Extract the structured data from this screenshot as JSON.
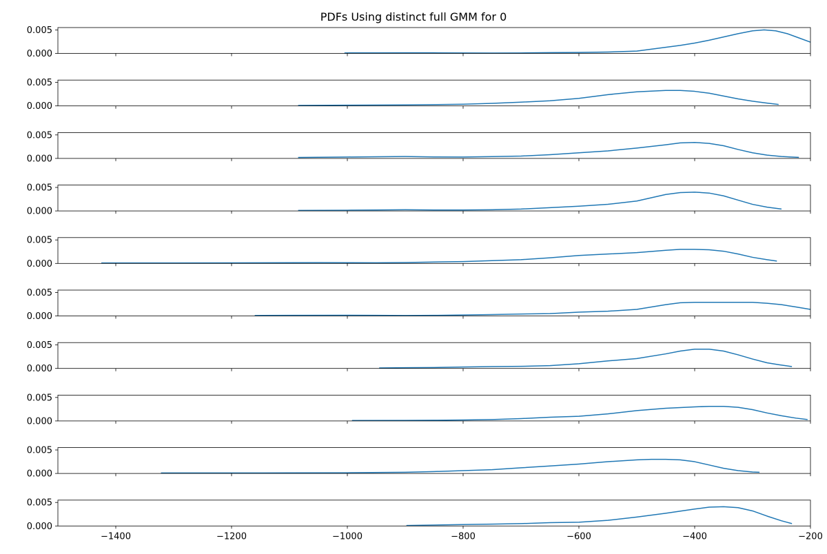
{
  "chart_data": {
    "type": "line",
    "title": "PDFs Using distinct full GMM for 0",
    "xlabel": "",
    "ylabel": "",
    "xlim": [
      -1500,
      -200
    ],
    "ylim": [
      0,
      0.0055
    ],
    "x_ticks": [
      -1400,
      -1200,
      -1000,
      -800,
      -600,
      -400,
      -200
    ],
    "x_tick_labels": [
      "−1400",
      "−1200",
      "−1000",
      "−800",
      "−600",
      "−400",
      "−200"
    ],
    "y_ticks": [
      0.0,
      0.005
    ],
    "y_tick_labels": [
      "0.000",
      "0.005"
    ],
    "line_color": "#1f77b4",
    "grid": false,
    "series": [
      {
        "x": [
          -1005,
          -950,
          -900,
          -850,
          -800,
          -750,
          -700,
          -650,
          -600,
          -550,
          -500,
          -475,
          -450,
          -425,
          -400,
          -375,
          -350,
          -325,
          -300,
          -280,
          -260,
          -240,
          -220,
          -200
        ],
        "y": [
          0.0001,
          0.00011,
          0.00013,
          0.00012,
          0.0001,
          8e-05,
          0.0001,
          0.00016,
          0.0002,
          0.0003,
          0.0005,
          0.0009,
          0.0013,
          0.0017,
          0.0022,
          0.0028,
          0.0035,
          0.0042,
          0.0048,
          0.005,
          0.0048,
          0.0042,
          0.0033,
          0.0024
        ]
      },
      {
        "x": [
          -1085,
          -1000,
          -900,
          -800,
          -750,
          -700,
          -650,
          -600,
          -550,
          -500,
          -450,
          -425,
          -400,
          -375,
          -350,
          -325,
          -300,
          -275,
          -255
        ],
        "y": [
          0.0001,
          0.00015,
          0.00022,
          0.00035,
          0.00055,
          0.0008,
          0.0011,
          0.0016,
          0.0024,
          0.003,
          0.0033,
          0.0033,
          0.0031,
          0.0027,
          0.0021,
          0.0015,
          0.001,
          0.0006,
          0.0003
        ]
      },
      {
        "x": [
          -1085,
          -1050,
          -1000,
          -950,
          -900,
          -850,
          -800,
          -750,
          -700,
          -650,
          -600,
          -550,
          -500,
          -450,
          -425,
          -400,
          -375,
          -350,
          -325,
          -300,
          -275,
          -250,
          -220
        ],
        "y": [
          0.0002,
          0.00025,
          0.0003,
          0.00035,
          0.0004,
          0.00032,
          0.0003,
          0.00038,
          0.0005,
          0.0008,
          0.0012,
          0.0016,
          0.0022,
          0.0029,
          0.0033,
          0.0034,
          0.0032,
          0.0027,
          0.0019,
          0.0012,
          0.0007,
          0.0004,
          0.00022
        ]
      },
      {
        "x": [
          -1085,
          -1000,
          -950,
          -900,
          -850,
          -800,
          -750,
          -700,
          -650,
          -600,
          -550,
          -500,
          -475,
          -450,
          -425,
          -400,
          -375,
          -350,
          -325,
          -300,
          -275,
          -250
        ],
        "y": [
          0.0001,
          0.00015,
          0.0002,
          0.00025,
          0.0002,
          0.0002,
          0.00025,
          0.0004,
          0.0007,
          0.001,
          0.0014,
          0.0021,
          0.0028,
          0.0035,
          0.0039,
          0.004,
          0.0038,
          0.0032,
          0.0023,
          0.0014,
          0.0008,
          0.0004
        ]
      },
      {
        "x": [
          -1425,
          -1300,
          -1200,
          -1100,
          -1050,
          -1000,
          -950,
          -900,
          -850,
          -800,
          -750,
          -700,
          -650,
          -600,
          -550,
          -500,
          -450,
          -425,
          -400,
          -375,
          -350,
          -325,
          -300,
          -275,
          -258
        ],
        "y": [
          0.0001,
          0.0001,
          0.00012,
          0.00015,
          0.00018,
          0.00015,
          0.00013,
          0.0002,
          0.0003,
          0.0004,
          0.0006,
          0.0008,
          0.0012,
          0.0017,
          0.002,
          0.0023,
          0.0028,
          0.003,
          0.003,
          0.0029,
          0.0026,
          0.002,
          0.0013,
          0.0008,
          0.0005
        ]
      },
      {
        "x": [
          -1160,
          -1100,
          -1000,
          -950,
          -900,
          -850,
          -800,
          -750,
          -700,
          -650,
          -600,
          -550,
          -500,
          -450,
          -425,
          -400,
          -375,
          -350,
          -300,
          -275,
          -250,
          -225,
          -200
        ],
        "y": [
          0.0001,
          0.00012,
          0.00015,
          0.00012,
          0.0001,
          0.00012,
          0.0002,
          0.0003,
          0.0004,
          0.0005,
          0.0008,
          0.001,
          0.0014,
          0.0024,
          0.0028,
          0.0029,
          0.0029,
          0.0029,
          0.0029,
          0.0027,
          0.0024,
          0.0019,
          0.0014
        ]
      },
      {
        "x": [
          -945,
          -900,
          -850,
          -800,
          -750,
          -700,
          -650,
          -600,
          -550,
          -500,
          -450,
          -425,
          -400,
          -375,
          -350,
          -325,
          -300,
          -275,
          -255,
          -232
        ],
        "y": [
          0.0001,
          0.00015,
          0.0002,
          0.0003,
          0.0004,
          0.00045,
          0.0006,
          0.001,
          0.0016,
          0.0021,
          0.0031,
          0.0037,
          0.0041,
          0.0041,
          0.0037,
          0.0029,
          0.002,
          0.0012,
          0.0008,
          0.0004
        ]
      },
      {
        "x": [
          -992,
          -900,
          -850,
          -800,
          -750,
          -700,
          -650,
          -600,
          -550,
          -500,
          -450,
          -400,
          -375,
          -350,
          -325,
          -300,
          -275,
          -250,
          -225,
          -205
        ],
        "y": [
          0.0001,
          0.00012,
          0.00015,
          0.0002,
          0.0003,
          0.0005,
          0.0008,
          0.001,
          0.0015,
          0.0022,
          0.0027,
          0.003,
          0.0031,
          0.0031,
          0.0029,
          0.0024,
          0.0017,
          0.0011,
          0.0006,
          0.0003
        ]
      },
      {
        "x": [
          -1322,
          -1200,
          -1100,
          -1000,
          -900,
          -850,
          -800,
          -750,
          -700,
          -650,
          -600,
          -550,
          -500,
          -475,
          -450,
          -425,
          -400,
          -375,
          -350,
          -325,
          -300,
          -288
        ],
        "y": [
          0.0001,
          0.0001,
          0.00012,
          0.00015,
          0.00025,
          0.0004,
          0.0006,
          0.0008,
          0.0012,
          0.0016,
          0.002,
          0.0025,
          0.0029,
          0.003,
          0.003,
          0.0029,
          0.0025,
          0.0018,
          0.0011,
          0.0006,
          0.0003,
          0.00025
        ]
      },
      {
        "x": [
          -898,
          -850,
          -800,
          -750,
          -700,
          -650,
          -600,
          -550,
          -500,
          -450,
          -400,
          -375,
          -350,
          -325,
          -300,
          -275,
          -250,
          -232
        ],
        "y": [
          0.0001,
          0.0002,
          0.0003,
          0.0004,
          0.0005,
          0.0007,
          0.0008,
          0.0012,
          0.0019,
          0.0027,
          0.0036,
          0.004,
          0.0041,
          0.0039,
          0.0032,
          0.0021,
          0.0011,
          0.0005
        ]
      }
    ]
  }
}
